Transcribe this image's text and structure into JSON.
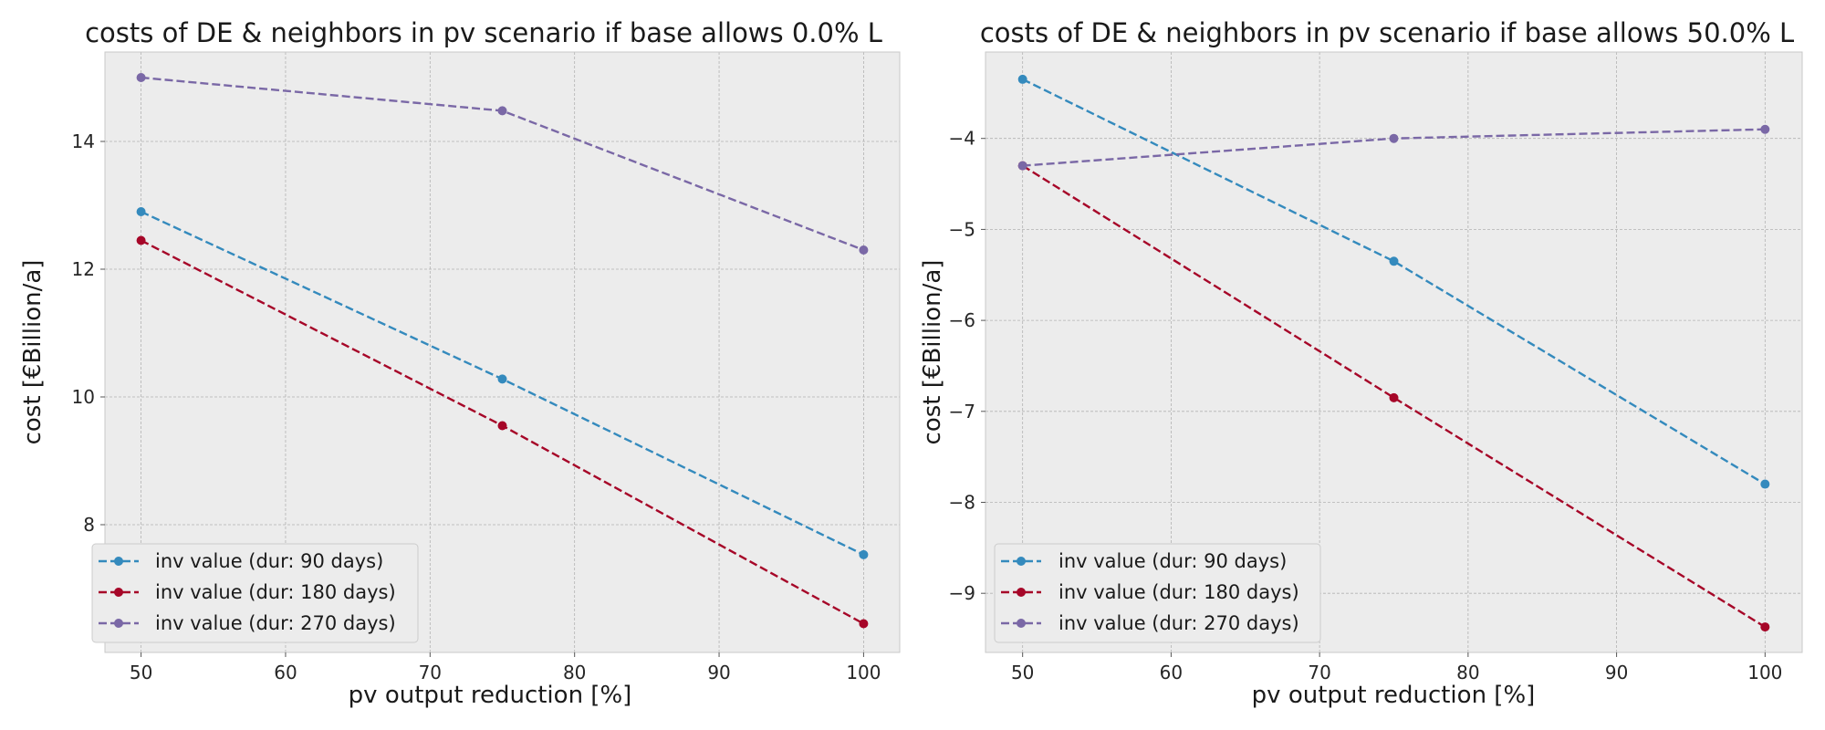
{
  "chart_data": [
    {
      "type": "line",
      "title": "costs of DE & neighbors in pv scenario if base allows 0.0% L",
      "xlabel": "pv output reduction [%]",
      "ylabel": "cost [€Billion/a]",
      "xlim": [
        47.5,
        102.5
      ],
      "ylim": [
        6.0,
        15.4
      ],
      "xticks": [
        50,
        60,
        70,
        80,
        90,
        100
      ],
      "xtick_labels": [
        "50",
        "60",
        "70",
        "80",
        "90",
        "100"
      ],
      "yticks": [
        8,
        10,
        12,
        14
      ],
      "ytick_labels": [
        "8",
        "10",
        "12",
        "14"
      ],
      "x": [
        50,
        75,
        100
      ],
      "grid": true,
      "legend_position": "lower-left",
      "series": [
        {
          "name": "inv value (dur: 90 days)",
          "color": "#348ABD",
          "values": [
            12.9,
            10.28,
            7.53
          ]
        },
        {
          "name": "inv value (dur: 180 days)",
          "color": "#A60628",
          "values": [
            12.45,
            9.55,
            6.45
          ]
        },
        {
          "name": "inv value (dur: 270 days)",
          "color": "#7A68A6",
          "values": [
            15.0,
            14.48,
            12.3
          ]
        }
      ]
    },
    {
      "type": "line",
      "title": "costs of DE & neighbors in pv scenario if base allows 50.0% L",
      "xlabel": "pv output reduction [%]",
      "ylabel": "cost [€Billion/a]",
      "xlim": [
        47.5,
        102.5
      ],
      "ylim": [
        -9.65,
        -3.05
      ],
      "xticks": [
        50,
        60,
        70,
        80,
        90,
        100
      ],
      "xtick_labels": [
        "50",
        "60",
        "70",
        "80",
        "90",
        "100"
      ],
      "yticks": [
        -9,
        -8,
        -7,
        -6,
        -5,
        -4
      ],
      "ytick_labels": [
        "−9",
        "−8",
        "−7",
        "−6",
        "−5",
        "−4"
      ],
      "x": [
        50,
        75,
        100
      ],
      "grid": true,
      "legend_position": "lower-left",
      "series": [
        {
          "name": "inv value (dur: 90 days)",
          "color": "#348ABD",
          "values": [
            -3.35,
            -5.35,
            -7.8
          ]
        },
        {
          "name": "inv value (dur: 180 days)",
          "color": "#A60628",
          "values": [
            -4.3,
            -6.85,
            -9.37
          ]
        },
        {
          "name": "inv value (dur: 270 days)",
          "color": "#7A68A6",
          "values": [
            -4.3,
            -4.0,
            -3.9
          ]
        }
      ]
    }
  ]
}
